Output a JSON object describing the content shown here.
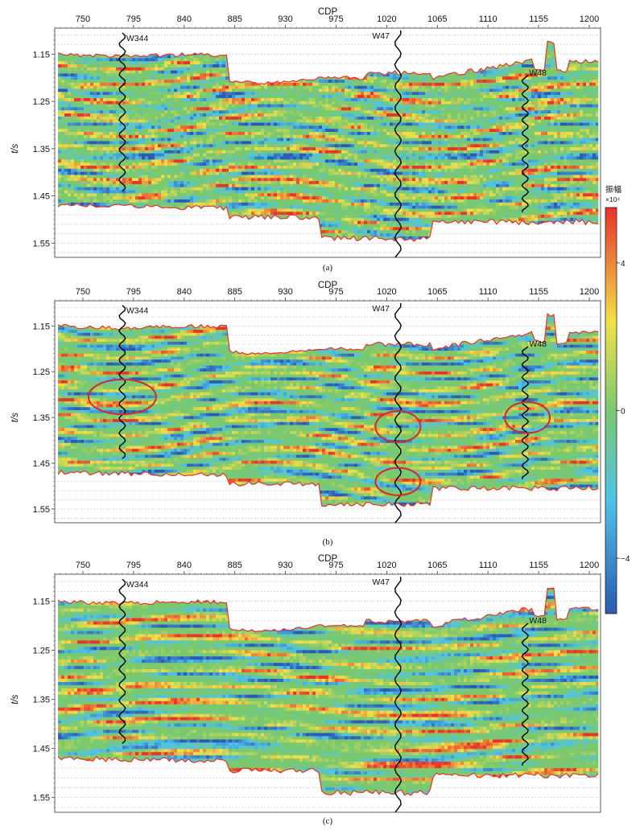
{
  "colors": {
    "amp_negative": "#2b59b3",
    "amp_low": "#4fc3e8",
    "amp_zero": "#7bc96f",
    "amp_mid": "#f2e04a",
    "amp_positive": "#e8322a",
    "well_log": "#000000",
    "highlight_ellipse": "#d62828"
  },
  "icons": {
    "annotation_shape": "ellipse"
  },
  "colorbar": {
    "title": "振幅",
    "unit": "×10⁴",
    "ticks": [
      {
        "value": 4,
        "label": "4"
      },
      {
        "value": 0,
        "label": "0"
      },
      {
        "value": -4,
        "label": "−4"
      }
    ],
    "range": [
      -5.5,
      5.5
    ]
  },
  "chart_data": [
    {
      "type": "heatmap",
      "panel_label": "(a)",
      "xlabel": "CDP",
      "ylabel": "t/s",
      "xlim": [
        725,
        1210
      ],
      "ylim": [
        1.58,
        1.095
      ],
      "x_ticks": [
        750,
        795,
        840,
        885,
        930,
        975,
        1020,
        1065,
        1110,
        1155,
        1200
      ],
      "y_ticks": [
        1.15,
        1.25,
        1.35,
        1.45,
        1.55
      ],
      "grid": true,
      "wells": [
        {
          "name": "W344",
          "cdp": 785,
          "t_top": 1.105,
          "t_bottom": 1.44
        },
        {
          "name": "W47",
          "cdp": 1030,
          "t_top": 1.1,
          "t_bottom": 1.58
        },
        {
          "name": "W48",
          "cdp": 1143,
          "t_top": 1.195,
          "t_bottom": 1.485
        }
      ],
      "annotations": []
    },
    {
      "type": "heatmap",
      "panel_label": "(b)",
      "xlabel": "CDP",
      "ylabel": "t/s",
      "xlim": [
        725,
        1210
      ],
      "ylim": [
        1.58,
        1.095
      ],
      "x_ticks": [
        750,
        795,
        840,
        885,
        930,
        975,
        1020,
        1065,
        1110,
        1155,
        1200
      ],
      "y_ticks": [
        1.15,
        1.25,
        1.35,
        1.45,
        1.55
      ],
      "grid": true,
      "wells": [
        {
          "name": "W344",
          "cdp": 785,
          "t_top": 1.105,
          "t_bottom": 1.44
        },
        {
          "name": "W47",
          "cdp": 1030,
          "t_top": 1.1,
          "t_bottom": 1.58
        },
        {
          "name": "W48",
          "cdp": 1143,
          "t_top": 1.195,
          "t_bottom": 1.485
        }
      ],
      "annotations": [
        {
          "shape": "ellipse",
          "cdp": 785,
          "t": 1.305,
          "cdp_radius": 30,
          "t_radius": 0.038
        },
        {
          "shape": "ellipse",
          "cdp": 1030,
          "t": 1.37,
          "cdp_radius": 20,
          "t_radius": 0.034
        },
        {
          "shape": "ellipse",
          "cdp": 1030,
          "t": 1.49,
          "cdp_radius": 20,
          "t_radius": 0.03
        },
        {
          "shape": "ellipse",
          "cdp": 1145,
          "t": 1.35,
          "cdp_radius": 20,
          "t_radius": 0.034
        }
      ]
    },
    {
      "type": "heatmap",
      "panel_label": "(c)",
      "xlabel": "CDP",
      "ylabel": "t/s",
      "xlim": [
        725,
        1210
      ],
      "ylim": [
        1.58,
        1.095
      ],
      "x_ticks": [
        750,
        795,
        840,
        885,
        930,
        975,
        1020,
        1065,
        1110,
        1155,
        1200
      ],
      "y_ticks": [
        1.15,
        1.25,
        1.35,
        1.45,
        1.55
      ],
      "grid": true,
      "wells": [
        {
          "name": "W344",
          "cdp": 785,
          "t_top": 1.105,
          "t_bottom": 1.44
        },
        {
          "name": "W47",
          "cdp": 1030,
          "t_top": 1.1,
          "t_bottom": 1.58
        },
        {
          "name": "W48",
          "cdp": 1143,
          "t_top": 1.195,
          "t_bottom": 1.485
        }
      ],
      "annotations": []
    }
  ]
}
